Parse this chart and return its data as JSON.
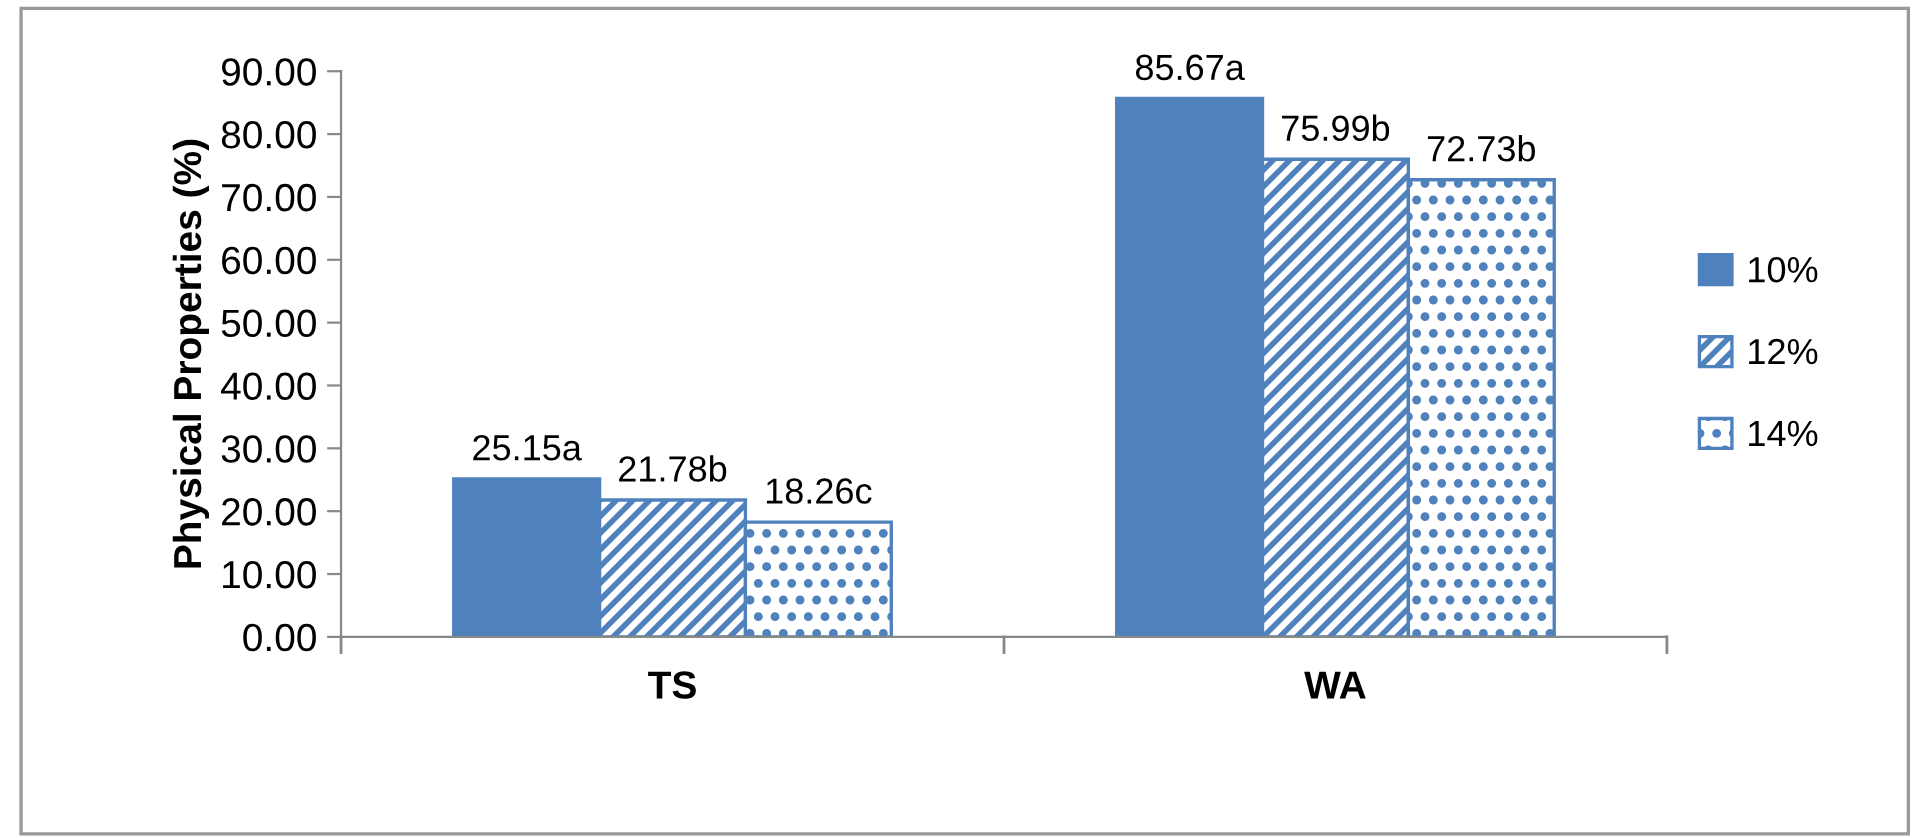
{
  "chart_data": {
    "type": "bar",
    "ylabel": "Physical Properties (%)",
    "categories": [
      "TS",
      "WA"
    ],
    "series": [
      {
        "name": "10%",
        "color": "#4f81bd",
        "values": [
          25.15,
          85.67
        ],
        "value_labels": [
          "25.15a",
          "85.67a"
        ]
      },
      {
        "name": "12%",
        "color": "#4f81bd",
        "values": [
          21.78,
          75.99
        ],
        "value_labels": [
          "21.78b",
          "75.99b"
        ]
      },
      {
        "name": "14%",
        "color": "#4f81bd",
        "values": [
          18.26,
          72.73
        ],
        "value_labels": [
          "18.26c",
          "72.73b"
        ]
      }
    ],
    "ylim": [
      0,
      90
    ],
    "yticks": [
      {
        "value": 0,
        "label": "0.00"
      },
      {
        "value": 10,
        "label": "10.00"
      },
      {
        "value": 20,
        "label": "20.00"
      },
      {
        "value": 30,
        "label": "30.00"
      },
      {
        "value": 40,
        "label": "40.00"
      },
      {
        "value": 50,
        "label": "50.00"
      },
      {
        "value": 60,
        "label": "60.00"
      },
      {
        "value": 70,
        "label": "70.00"
      },
      {
        "value": 80,
        "label": "80.00"
      },
      {
        "value": 90,
        "label": "90.00"
      }
    ],
    "grid": false,
    "legend": "right"
  }
}
